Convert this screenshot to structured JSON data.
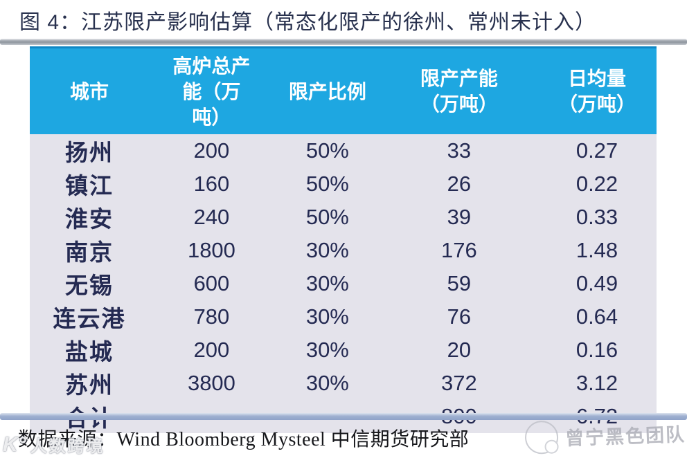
{
  "figure": {
    "title": "图 4：江苏限产影响估算（常态化限产的徐州、常州未计入）"
  },
  "chart_data": {
    "type": "table",
    "title": "图 4：江苏限产影响估算（常态化限产的徐州、常州未计入）",
    "columns": [
      "城市",
      "高炉总产能（万吨）",
      "限产比例",
      "限产产能（万吨）",
      "日均量（万吨）"
    ],
    "rows": [
      [
        "扬州",
        200,
        "50%",
        33,
        0.27
      ],
      [
        "镇江",
        160,
        "50%",
        26,
        0.22
      ],
      [
        "淮安",
        240,
        "50%",
        39,
        0.33
      ],
      [
        "南京",
        1800,
        "30%",
        176,
        1.48
      ],
      [
        "无锡",
        600,
        "30%",
        59,
        0.49
      ],
      [
        "连云港",
        780,
        "30%",
        76,
        0.64
      ],
      [
        "盐城",
        200,
        "30%",
        20,
        0.16
      ],
      [
        "苏州",
        3800,
        "30%",
        372,
        3.12
      ],
      [
        "合计",
        null,
        null,
        800,
        6.72
      ]
    ],
    "source": "数据来源：Wind Bloomberg Mysteel 中信期货研究部",
    "header_bg": "#1ea7e1",
    "body_bg": "#e4e3eb",
    "text_color": "#242a52"
  },
  "table": {
    "headers": [
      "城市",
      "高炉总产\n能（万\n吨）",
      "限产比例",
      "限产产能\n（万吨）",
      "日均量\n（万吨）"
    ],
    "rows": [
      [
        "扬州",
        "200",
        "50%",
        "33",
        "0.27"
      ],
      [
        "镇江",
        "160",
        "50%",
        "26",
        "0.22"
      ],
      [
        "淮安",
        "240",
        "50%",
        "39",
        "0.33"
      ],
      [
        "南京",
        "1800",
        "30%",
        "176",
        "1.48"
      ],
      [
        "无锡",
        "600",
        "30%",
        "59",
        "0.49"
      ],
      [
        "连云港",
        "780",
        "30%",
        "76",
        "0.64"
      ],
      [
        "盐城",
        "200",
        "30%",
        "20",
        "0.16"
      ],
      [
        "苏州",
        "3800",
        "30%",
        "372",
        "3.12"
      ],
      [
        "合计",
        "",
        "",
        "800",
        "6.72"
      ]
    ]
  },
  "source": {
    "label": "数据来源：Wind Bloomberg Mysteel 中信期货研究部"
  },
  "watermarks": {
    "right_text": "曾宁黑色团队",
    "left_logo": "K°",
    "left_text": "人数跨境"
  },
  "colors": {
    "header_blue": "#1ea7e1",
    "header_border": "#0f87c5",
    "body_bg": "#e4e3eb",
    "body_text": "#242a52",
    "title_text": "#28314e",
    "rule_bottom": "#8fa3c9"
  }
}
